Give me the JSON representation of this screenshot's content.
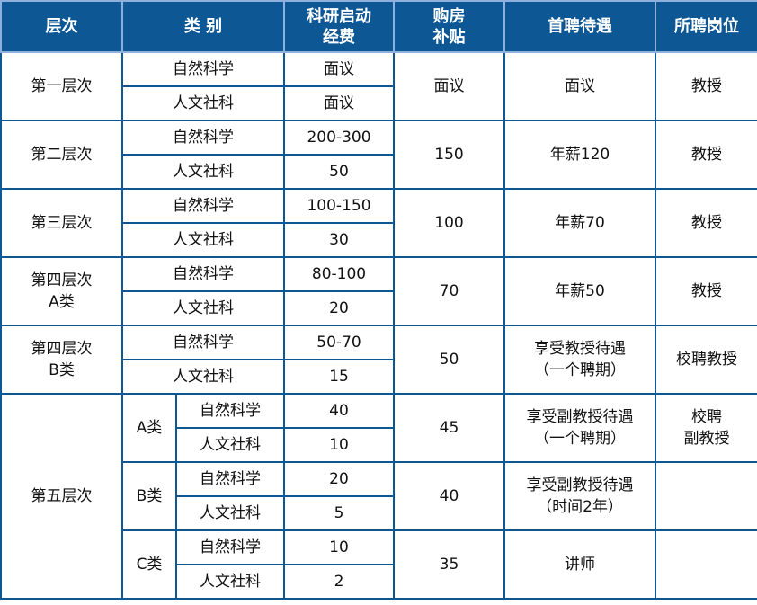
{
  "header": {
    "level": "层次",
    "category": "类 别",
    "startup": "科研启动\n经费",
    "housing": "购房\n补贴",
    "treatment": "首聘待遇",
    "position": "所聘岗位"
  },
  "sub": {
    "sci": "自然科学",
    "hum": "人文社科"
  },
  "rows": [
    {
      "level": "第一层次",
      "sci": "面议",
      "hum": "面议",
      "housing": "面议",
      "treatment": "面议",
      "position": "教授"
    },
    {
      "level": "第二层次",
      "sci": "200-300",
      "hum": "50",
      "housing": "150",
      "treatment": "年薪120",
      "position": "教授"
    },
    {
      "level": "第三层次",
      "sci": "100-150",
      "hum": "30",
      "housing": "100",
      "treatment": "年薪70",
      "position": "教授"
    },
    {
      "level": "第四层次\nA类",
      "sci": "80-100",
      "hum": "20",
      "housing": "70",
      "treatment": "年薪50",
      "position": "教授"
    },
    {
      "level": "第四层次\nB类",
      "sci": "50-70",
      "hum": "15",
      "housing": "50",
      "treatment": "享受教授待遇\n（一个聘期）",
      "position": "校聘教授"
    }
  ],
  "fifth": {
    "level": "第五层次",
    "groups": [
      {
        "label": "A类",
        "sci": "40",
        "hum": "10",
        "housing": "45",
        "treatment": "享受副教授待遇\n（一个聘期）",
        "position": "校聘\n副教授"
      },
      {
        "label": "B类",
        "sci": "20",
        "hum": "5",
        "housing": "40",
        "treatment": "享受副教授待遇\n（时间2年）",
        "position": ""
      },
      {
        "label": "C类",
        "sci": "10",
        "hum": "2",
        "housing": "35",
        "treatment": "讲师",
        "position": ""
      }
    ]
  }
}
